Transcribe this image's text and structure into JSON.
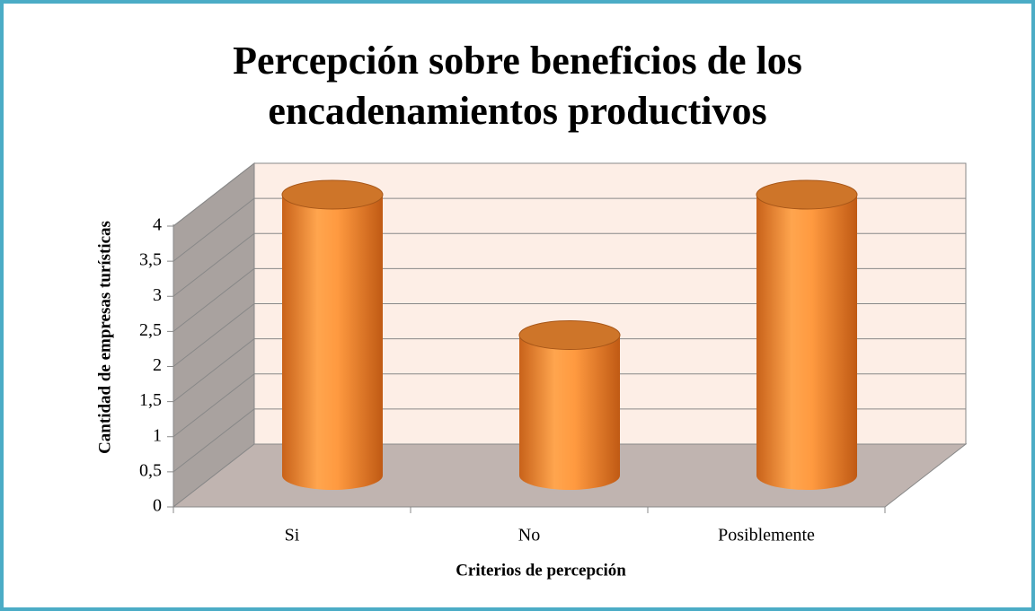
{
  "chart_data": {
    "type": "bar3d",
    "title": "Percepción sobre beneficios de los encadenamientos productivos",
    "x_label": "Criterios de percepción",
    "y_label": "Cantidad de empresas turísticas",
    "categories": [
      "Si",
      "No",
      "Posiblemente"
    ],
    "values": [
      4,
      2,
      4
    ],
    "color": "#f28a30",
    "ylim": [
      0,
      4
    ],
    "yticks": [
      0,
      {
        "value": 0.5,
        "label": "0,5"
      },
      1,
      {
        "value": 1.5,
        "label": "1,5"
      },
      2,
      {
        "value": 2.5,
        "label": "2,5"
      },
      3,
      {
        "value": 3.5,
        "label": "3,5"
      },
      4
    ],
    "grid": true
  }
}
